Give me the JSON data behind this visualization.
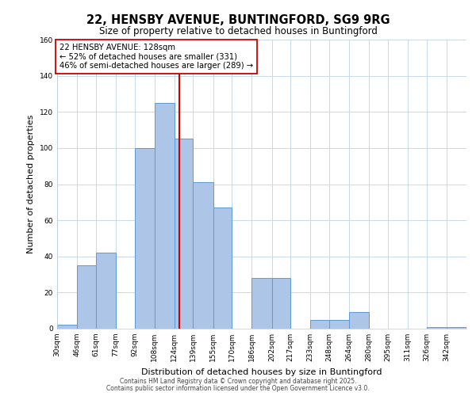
{
  "title": "22, HENSBY AVENUE, BUNTINGFORD, SG9 9RG",
  "subtitle": "Size of property relative to detached houses in Buntingford",
  "xlabel": "Distribution of detached houses by size in Buntingford",
  "ylabel": "Number of detached properties",
  "bar_labels": [
    "30sqm",
    "46sqm",
    "61sqm",
    "77sqm",
    "92sqm",
    "108sqm",
    "124sqm",
    "139sqm",
    "155sqm",
    "170sqm",
    "186sqm",
    "202sqm",
    "217sqm",
    "233sqm",
    "248sqm",
    "264sqm",
    "280sqm",
    "295sqm",
    "311sqm",
    "326sqm",
    "342sqm"
  ],
  "bar_values": [
    2,
    35,
    42,
    0,
    100,
    125,
    105,
    81,
    67,
    0,
    28,
    28,
    0,
    5,
    5,
    9,
    0,
    0,
    0,
    1,
    1
  ],
  "bar_edges": [
    30,
    46,
    61,
    77,
    92,
    108,
    124,
    139,
    155,
    170,
    186,
    202,
    217,
    233,
    248,
    264,
    280,
    295,
    311,
    326,
    342,
    358
  ],
  "bar_color": "#adc6e8",
  "bar_edgecolor": "#5b9bd5",
  "vline_x": 128,
  "vline_color": "#cc0000",
  "annotation_text": "22 HENSBY AVENUE: 128sqm\n← 52% of detached houses are smaller (331)\n46% of semi-detached houses are larger (289) →",
  "annotation_box_edgecolor": "#cc0000",
  "ylim": [
    0,
    160
  ],
  "yticks": [
    0,
    20,
    40,
    60,
    80,
    100,
    120,
    140,
    160
  ],
  "footer1": "Contains HM Land Registry data © Crown copyright and database right 2025.",
  "footer2": "Contains public sector information licensed under the Open Government Licence v3.0.",
  "background_color": "#ffffff",
  "grid_color": "#c8d8e8"
}
